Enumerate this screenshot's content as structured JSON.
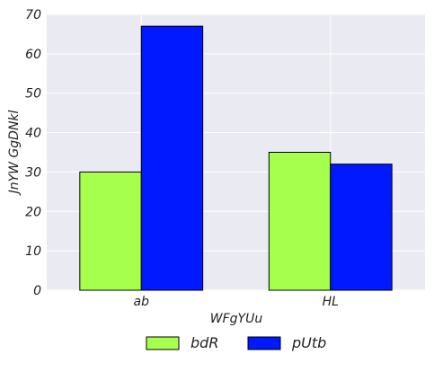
{
  "chart_data": {
    "type": "bar",
    "categories": [
      "ab",
      "HL"
    ],
    "series": [
      {
        "name": "bdR",
        "values": [
          30,
          35
        ],
        "color": "#a6ff4d"
      },
      {
        "name": "pUtb",
        "values": [
          67,
          32
        ],
        "color": "#0019ff"
      }
    ],
    "xlabel": "WFgYUu",
    "ylabel": "JnYW GgDNkl",
    "ylim": [
      0,
      70
    ],
    "yticks": [
      0,
      10,
      20,
      30,
      40,
      50,
      60,
      70
    ],
    "grid": true,
    "legend_position": "bottom"
  },
  "colors": {
    "plot_background": "#eaeaf2",
    "grid": "#ffffff"
  }
}
